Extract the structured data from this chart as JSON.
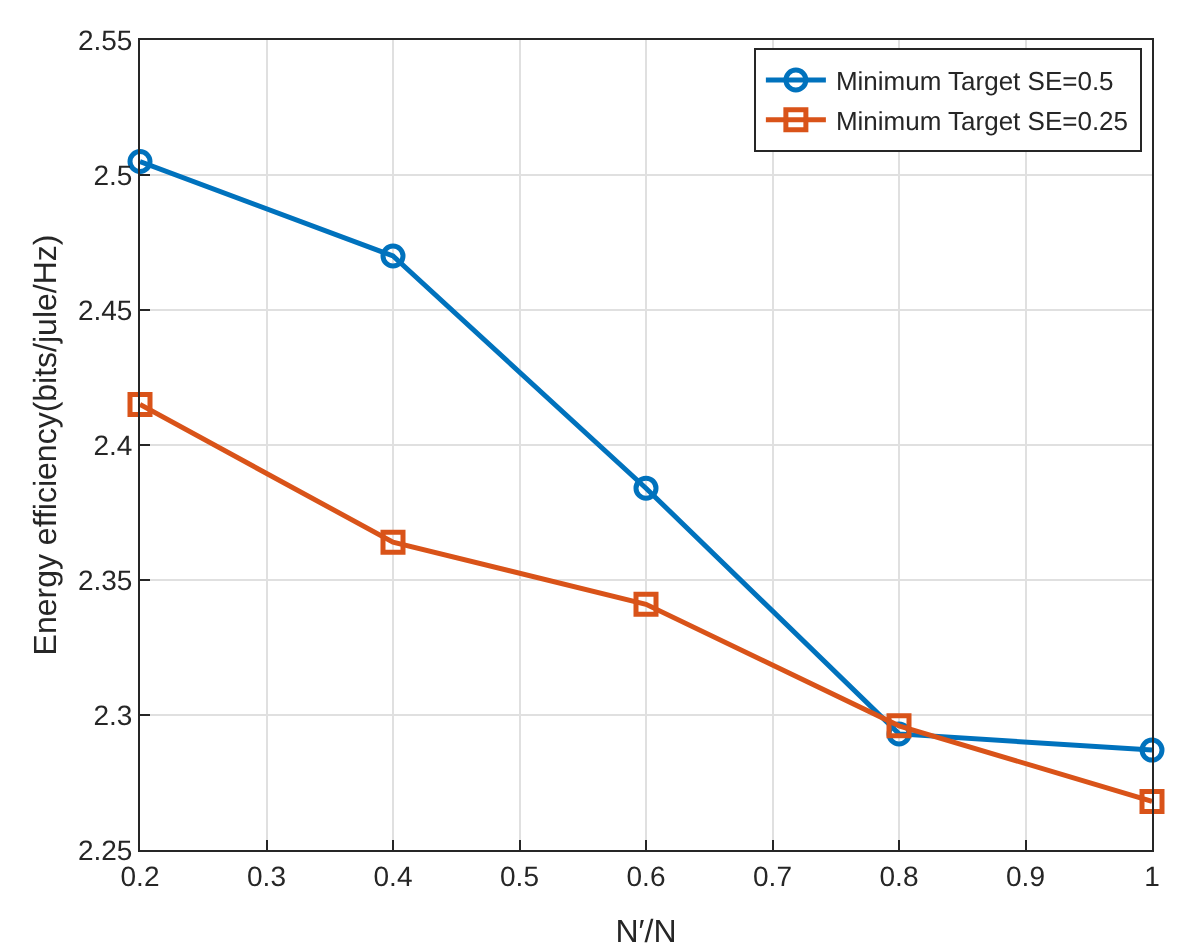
{
  "chart_data": {
    "type": "line",
    "xlabel": "N′/N",
    "ylabel": "Energy efficiency(bits/jule/Hz)",
    "x": [
      0.2,
      0.4,
      0.6,
      0.8,
      1
    ],
    "series": [
      {
        "name": "Minimum Target SE=0.5",
        "color": "#0072bd",
        "marker": "circle",
        "values": [
          2.505,
          2.47,
          2.384,
          2.293,
          2.287
        ]
      },
      {
        "name": "Minimum Target SE=0.25",
        "color": "#d95319",
        "marker": "square",
        "values": [
          2.415,
          2.364,
          2.341,
          2.296,
          2.268
        ]
      }
    ],
    "xlim": [
      0.2,
      1
    ],
    "xticks": [
      0.2,
      0.3,
      0.4,
      0.5,
      0.6,
      0.7,
      0.8,
      0.9,
      1
    ],
    "ylim": [
      2.25,
      2.55
    ],
    "yticks": [
      2.25,
      2.3,
      2.35,
      2.4,
      2.45,
      2.5,
      2.55
    ],
    "grid": true,
    "legend": "top right",
    "line_style": "solid"
  }
}
